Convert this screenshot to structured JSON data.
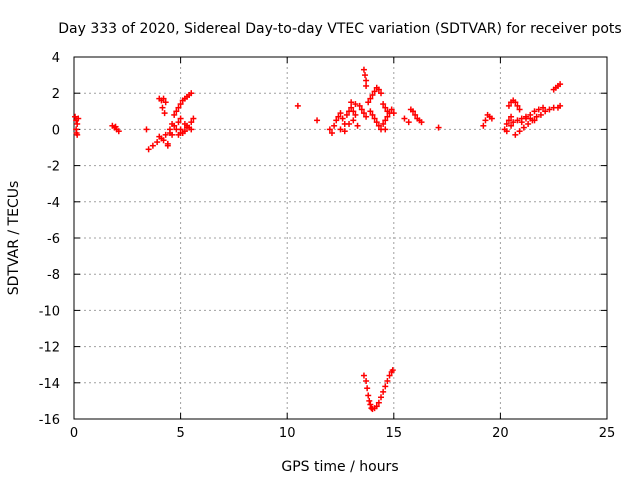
{
  "chart_data": {
    "type": "scatter",
    "title": "Day 333 of 2020, Sidereal Day-to-day VTEC variation (SDTVAR) for receiver pots",
    "xlabel": "GPS time / hours",
    "ylabel": "SDTVAR / TECUs",
    "xlim": [
      0,
      25
    ],
    "ylim": [
      -16,
      4
    ],
    "xticks": [
      0,
      5,
      10,
      15,
      20,
      25
    ],
    "yticks": [
      4,
      2,
      0,
      -2,
      -4,
      -6,
      -8,
      -10,
      -12,
      -14,
      -16
    ],
    "grid": true,
    "marker": "+",
    "color": "#ff0000",
    "series": [
      {
        "name": "SDTVAR",
        "points": [
          [
            0.05,
            0.7
          ],
          [
            0.1,
            0.5
          ],
          [
            0.15,
            0.3
          ],
          [
            0.1,
            0.0
          ],
          [
            0.12,
            -0.2
          ],
          [
            0.2,
            0.6
          ],
          [
            0.15,
            -0.3
          ],
          [
            1.8,
            0.2
          ],
          [
            1.9,
            0.1
          ],
          [
            2.0,
            0.0
          ],
          [
            2.1,
            -0.1
          ],
          [
            1.95,
            0.15
          ],
          [
            3.4,
            0.0
          ],
          [
            3.5,
            -1.1
          ],
          [
            3.7,
            -0.9
          ],
          [
            3.9,
            -0.7
          ],
          [
            4.1,
            -0.5
          ],
          [
            4.3,
            -0.3
          ],
          [
            4.5,
            -0.2
          ],
          [
            4.0,
            -0.4
          ],
          [
            4.2,
            -0.6
          ],
          [
            4.4,
            -0.8
          ],
          [
            4.6,
            -0.3
          ],
          [
            4.0,
            1.7
          ],
          [
            4.1,
            1.6
          ],
          [
            4.2,
            1.7
          ],
          [
            4.3,
            1.5
          ],
          [
            4.15,
            1.2
          ],
          [
            4.25,
            0.9
          ],
          [
            4.4,
            -0.9
          ],
          [
            4.5,
            0.0
          ],
          [
            4.7,
            0.2
          ],
          [
            4.9,
            0.4
          ],
          [
            5.0,
            0.0
          ],
          [
            5.1,
            -0.2
          ],
          [
            5.2,
            0.3
          ],
          [
            4.6,
            0.3
          ],
          [
            4.8,
            0.0
          ],
          [
            5.0,
            0.6
          ],
          [
            5.3,
            0.2
          ],
          [
            5.4,
            0.1
          ],
          [
            5.5,
            0.0
          ],
          [
            4.7,
            0.8
          ],
          [
            4.8,
            1.0
          ],
          [
            4.9,
            1.2
          ],
          [
            5.0,
            1.4
          ],
          [
            5.1,
            1.6
          ],
          [
            5.2,
            1.7
          ],
          [
            5.3,
            1.8
          ],
          [
            5.4,
            1.9
          ],
          [
            5.5,
            2.0
          ],
          [
            4.9,
            -0.3
          ],
          [
            5.0,
            -0.2
          ],
          [
            5.2,
            -0.1
          ],
          [
            5.3,
            0.1
          ],
          [
            5.5,
            0.4
          ],
          [
            5.6,
            0.6
          ],
          [
            10.5,
            1.3
          ],
          [
            11.4,
            0.5
          ],
          [
            12.0,
            0.0
          ],
          [
            12.1,
            -0.2
          ],
          [
            12.2,
            0.2
          ],
          [
            12.3,
            0.5
          ],
          [
            12.4,
            0.7
          ],
          [
            12.5,
            0.9
          ],
          [
            12.6,
            0.6
          ],
          [
            12.7,
            0.3
          ],
          [
            12.8,
            0.8
          ],
          [
            12.9,
            1.0
          ],
          [
            13.0,
            1.2
          ],
          [
            13.1,
            1.0
          ],
          [
            13.2,
            0.8
          ],
          [
            12.5,
            0.0
          ],
          [
            12.7,
            -0.1
          ],
          [
            12.9,
            0.3
          ],
          [
            13.1,
            0.5
          ],
          [
            13.3,
            0.2
          ],
          [
            13.0,
            1.5
          ],
          [
            13.2,
            1.4
          ],
          [
            13.4,
            1.3
          ],
          [
            13.5,
            1.1
          ],
          [
            13.6,
            0.9
          ],
          [
            13.7,
            0.7
          ],
          [
            13.6,
            3.3
          ],
          [
            13.65,
            3.0
          ],
          [
            13.7,
            2.7
          ],
          [
            13.7,
            2.4
          ],
          [
            13.8,
            1.5
          ],
          [
            13.9,
            1.7
          ],
          [
            14.0,
            1.9
          ],
          [
            14.1,
            2.1
          ],
          [
            14.2,
            2.3
          ],
          [
            14.3,
            2.2
          ],
          [
            14.4,
            2.0
          ],
          [
            13.9,
            1.0
          ],
          [
            14.0,
            0.8
          ],
          [
            14.1,
            0.6
          ],
          [
            14.2,
            0.4
          ],
          [
            14.3,
            0.2
          ],
          [
            14.4,
            0.0
          ],
          [
            14.5,
            1.4
          ],
          [
            14.6,
            1.2
          ],
          [
            14.7,
            1.0
          ],
          [
            14.8,
            0.9
          ],
          [
            14.9,
            1.1
          ],
          [
            15.0,
            0.9
          ],
          [
            14.5,
            0.3
          ],
          [
            14.6,
            0.5
          ],
          [
            14.7,
            0.7
          ],
          [
            14.6,
            0.0
          ],
          [
            15.5,
            0.6
          ],
          [
            15.7,
            0.4
          ],
          [
            15.8,
            1.1
          ],
          [
            15.9,
            1.0
          ],
          [
            16.0,
            0.8
          ],
          [
            16.1,
            0.6
          ],
          [
            16.2,
            0.5
          ],
          [
            16.3,
            0.4
          ],
          [
            17.1,
            0.1
          ],
          [
            19.2,
            0.2
          ],
          [
            19.3,
            0.5
          ],
          [
            19.4,
            0.8
          ],
          [
            19.5,
            0.7
          ],
          [
            19.6,
            0.6
          ],
          [
            20.2,
            0.0
          ],
          [
            20.3,
            0.3
          ],
          [
            20.4,
            0.5
          ],
          [
            20.5,
            0.7
          ],
          [
            20.3,
            -0.1
          ],
          [
            20.5,
            0.2
          ],
          [
            20.4,
            1.3
          ],
          [
            20.5,
            1.5
          ],
          [
            20.6,
            1.6
          ],
          [
            20.7,
            1.5
          ],
          [
            20.8,
            1.3
          ],
          [
            20.9,
            1.1
          ],
          [
            20.7,
            -0.3
          ],
          [
            20.9,
            -0.1
          ],
          [
            21.1,
            0.1
          ],
          [
            21.3,
            0.3
          ],
          [
            21.5,
            0.5
          ],
          [
            21.7,
            0.7
          ],
          [
            21.0,
            0.4
          ],
          [
            21.2,
            0.6
          ],
          [
            21.4,
            0.8
          ],
          [
            21.6,
            1.0
          ],
          [
            21.8,
            1.1
          ],
          [
            22.0,
            1.2
          ],
          [
            21.9,
            0.8
          ],
          [
            22.1,
            1.0
          ],
          [
            22.3,
            1.1
          ],
          [
            22.5,
            1.2
          ],
          [
            22.7,
            1.2
          ],
          [
            22.8,
            1.3
          ],
          [
            20.6,
            0.4
          ],
          [
            20.8,
            0.5
          ],
          [
            21.0,
            0.6
          ],
          [
            21.2,
            0.7
          ],
          [
            21.4,
            0.6
          ],
          [
            21.6,
            0.5
          ],
          [
            22.5,
            2.2
          ],
          [
            22.6,
            2.3
          ],
          [
            22.7,
            2.4
          ],
          [
            22.8,
            2.5
          ],
          [
            13.6,
            -13.6
          ],
          [
            13.7,
            -13.9
          ],
          [
            13.75,
            -14.3
          ],
          [
            13.8,
            -14.7
          ],
          [
            13.85,
            -15.0
          ],
          [
            13.9,
            -15.2
          ],
          [
            13.95,
            -15.4
          ],
          [
            14.0,
            -15.45
          ],
          [
            14.1,
            -15.4
          ],
          [
            14.2,
            -15.3
          ],
          [
            14.3,
            -15.1
          ],
          [
            14.4,
            -14.8
          ],
          [
            14.5,
            -14.5
          ],
          [
            14.6,
            -14.2
          ],
          [
            14.7,
            -13.9
          ],
          [
            14.8,
            -13.6
          ],
          [
            14.9,
            -13.4
          ],
          [
            14.95,
            -13.3
          ]
        ]
      }
    ]
  }
}
